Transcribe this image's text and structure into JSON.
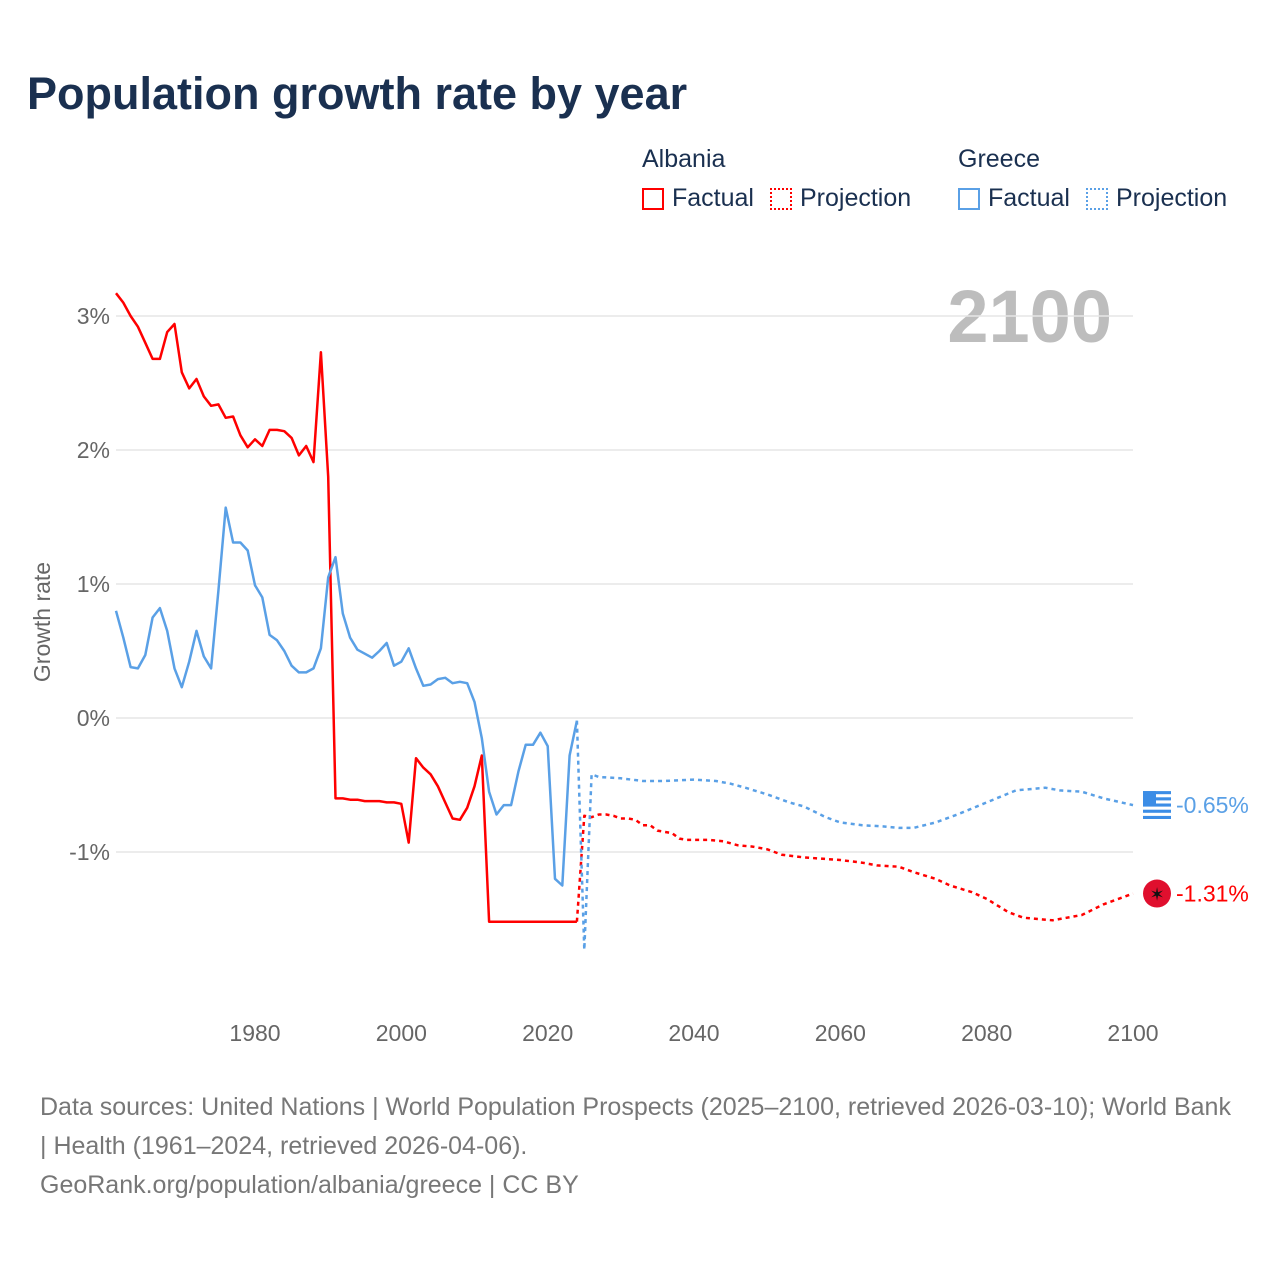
{
  "chart_data": {
    "type": "line",
    "title": "Population growth rate by year",
    "xlabel": "",
    "ylabel": "Growth rate",
    "xlim": [
      1961,
      2100
    ],
    "ylim": [
      -2.0,
      3.3
    ],
    "x_ticks": [
      1980,
      2000,
      2020,
      2040,
      2060,
      2080,
      2100
    ],
    "x_tick_labels": [
      "1980",
      "2000",
      "2020",
      "2040",
      "2060",
      "2080",
      "2100"
    ],
    "y_ticks": [
      3,
      2,
      1,
      0,
      -1
    ],
    "y_tick_labels": [
      "3%",
      "2%",
      "1%",
      "0%",
      "-1%"
    ],
    "grid": true,
    "year_label": "2100",
    "legend": {
      "placement": "top-right",
      "groups": [
        {
          "name": "Albania",
          "factual": "Factual",
          "projection": "Projection",
          "color": "#ff0000"
        },
        {
          "name": "Greece",
          "factual": "Factual",
          "projection": "Projection",
          "color": "#5aa0e6"
        }
      ]
    },
    "series": [
      {
        "name": "Albania Factual",
        "color": "#ff0000",
        "dashed": false,
        "x": [
          1961,
          1962,
          1963,
          1964,
          1965,
          1966,
          1967,
          1968,
          1969,
          1970,
          1971,
          1972,
          1973,
          1974,
          1975,
          1976,
          1977,
          1978,
          1979,
          1980,
          1981,
          1982,
          1983,
          1984,
          1985,
          1986,
          1987,
          1988,
          1989,
          1990,
          1991,
          1992,
          1993,
          1994,
          1995,
          1996,
          1997,
          1998,
          1999,
          2000,
          2001,
          2002,
          2003,
          2004,
          2005,
          2006,
          2007,
          2008,
          2009,
          2010,
          2011,
          2012,
          2016,
          2020,
          2024
        ],
        "y": [
          3.17,
          3.1,
          3.0,
          2.92,
          2.8,
          2.68,
          2.68,
          2.88,
          2.94,
          2.58,
          2.46,
          2.53,
          2.4,
          2.33,
          2.34,
          2.24,
          2.25,
          2.11,
          2.02,
          2.08,
          2.03,
          2.15,
          2.15,
          2.14,
          2.09,
          1.96,
          2.03,
          1.91,
          2.73,
          1.8,
          -0.6,
          -0.6,
          -0.61,
          -0.61,
          -0.62,
          -0.62,
          -0.62,
          -0.63,
          -0.63,
          -0.64,
          -0.93,
          -0.3,
          -0.37,
          -0.42,
          -0.51,
          -0.63,
          -0.75,
          -0.76,
          -0.67,
          -0.51,
          -0.28,
          -1.52,
          -1.52,
          -1.52,
          -1.52
        ]
      },
      {
        "name": "Albania Projection",
        "color": "#ff0000",
        "dashed": true,
        "x": [
          2024,
          2025,
          2026,
          2027,
          2028,
          2029,
          2030,
          2031,
          2032,
          2033,
          2034,
          2035,
          2036,
          2037,
          2038,
          2039,
          2040,
          2042,
          2044,
          2046,
          2048,
          2050,
          2052,
          2055,
          2060,
          2063,
          2065,
          2068,
          2070,
          2073,
          2075,
          2078,
          2080,
          2083,
          2085,
          2089,
          2093,
          2096,
          2100
        ],
        "y": [
          -1.52,
          -0.73,
          -0.74,
          -0.72,
          -0.72,
          -0.73,
          -0.75,
          -0.75,
          -0.76,
          -0.8,
          -0.8,
          -0.84,
          -0.85,
          -0.86,
          -0.9,
          -0.91,
          -0.91,
          -0.91,
          -0.92,
          -0.95,
          -0.96,
          -0.98,
          -1.02,
          -1.04,
          -1.06,
          -1.08,
          -1.1,
          -1.11,
          -1.15,
          -1.2,
          -1.25,
          -1.3,
          -1.35,
          -1.45,
          -1.49,
          -1.51,
          -1.47,
          -1.39,
          -1.31
        ]
      },
      {
        "name": "Greece Factual",
        "color": "#5aa0e6",
        "dashed": false,
        "x": [
          1961,
          1962,
          1963,
          1964,
          1965,
          1966,
          1967,
          1968,
          1969,
          1970,
          1971,
          1972,
          1973,
          1974,
          1975,
          1976,
          1977,
          1978,
          1979,
          1980,
          1981,
          1982,
          1983,
          1984,
          1985,
          1986,
          1987,
          1988,
          1989,
          1990,
          1991,
          1992,
          1993,
          1994,
          1995,
          1996,
          1997,
          1998,
          1999,
          2000,
          2001,
          2002,
          2003,
          2004,
          2005,
          2006,
          2007,
          2008,
          2009,
          2010,
          2011,
          2012,
          2013,
          2014,
          2015,
          2016,
          2017,
          2018,
          2019,
          2020,
          2021,
          2022,
          2023,
          2024
        ],
        "y": [
          0.8,
          0.6,
          0.38,
          0.37,
          0.47,
          0.75,
          0.82,
          0.65,
          0.37,
          0.23,
          0.42,
          0.65,
          0.46,
          0.37,
          0.95,
          1.57,
          1.31,
          1.31,
          1.25,
          0.99,
          0.9,
          0.62,
          0.58,
          0.5,
          0.39,
          0.34,
          0.34,
          0.37,
          0.52,
          1.05,
          1.2,
          0.78,
          0.6,
          0.51,
          0.48,
          0.45,
          0.5,
          0.56,
          0.39,
          0.42,
          0.52,
          0.37,
          0.24,
          0.25,
          0.29,
          0.3,
          0.26,
          0.27,
          0.26,
          0.12,
          -0.15,
          -0.55,
          -0.72,
          -0.65,
          -0.65,
          -0.4,
          -0.2,
          -0.2,
          -0.11,
          -0.21,
          -1.2,
          -1.25,
          -0.28,
          -0.02
        ]
      },
      {
        "name": "Greece Projection",
        "color": "#5aa0e6",
        "dashed": true,
        "x": [
          2024,
          2025,
          2026,
          2027,
          2030,
          2033,
          2036,
          2040,
          2043,
          2045,
          2047,
          2050,
          2053,
          2055,
          2058,
          2060,
          2063,
          2066,
          2068,
          2070,
          2073,
          2076,
          2080,
          2084,
          2088,
          2090,
          2093,
          2096,
          2100
        ],
        "y": [
          -0.02,
          -1.73,
          -0.42,
          -0.44,
          -0.45,
          -0.47,
          -0.47,
          -0.46,
          -0.47,
          -0.49,
          -0.52,
          -0.57,
          -0.63,
          -0.66,
          -0.74,
          -0.78,
          -0.8,
          -0.81,
          -0.82,
          -0.82,
          -0.78,
          -0.72,
          -0.63,
          -0.54,
          -0.52,
          -0.54,
          -0.55,
          -0.6,
          -0.65
        ]
      }
    ],
    "end_labels": [
      {
        "country": "Greece",
        "text": "-0.65%",
        "value": -0.65,
        "color": "#5aa0e6"
      },
      {
        "country": "Albania",
        "text": "-1.31%",
        "value": -1.31,
        "color": "#ff0000"
      }
    ]
  },
  "footer": {
    "sources": "Data sources: United Nations | World Population Prospects (2025–2100, retrieved 2026-03-10); World Bank | Health (1961–2024, retrieved 2026-04-06).",
    "credit": "GeoRank.org/population/albania/greece | CC BY"
  }
}
